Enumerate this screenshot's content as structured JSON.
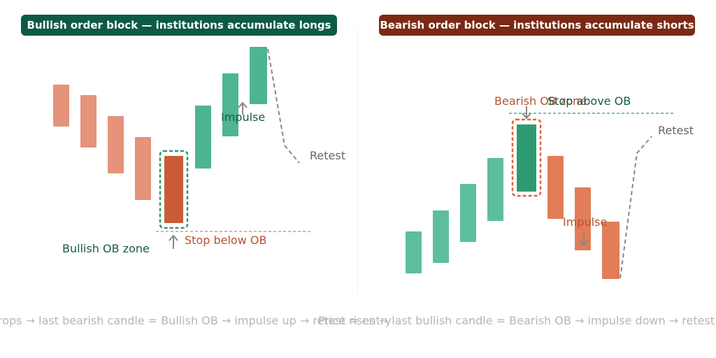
{
  "left": {
    "header": "Bullish order block — institutions accumulate longs",
    "header_color": "#0e5a46",
    "impulse_label": "Impulse",
    "retest_label": "Retest",
    "ob_zone_label": "Bullish OB zone",
    "stop_label": "Stop below OB",
    "caption": "Price drops → last bearish candle = Bullish OB → impulse up → retest = entry"
  },
  "right": {
    "header": "Bearish order block — institutions accumulate shorts",
    "header_color": "#7a2a14",
    "ob_zone_label": "Bearish OB zone",
    "stop_label": "Stop above OB",
    "impulse_label": "Impulse",
    "retest_label": "Retest",
    "caption": "Price rises → last bullish candle = Bearish OB → impulse down → retest = entry"
  },
  "colors": {
    "bearish_candle": "#e5937a",
    "ob_bearish": "#c95c36",
    "bullish_candle": "#4db592",
    "bullish_light": "#5dbe9e",
    "ob_bullish": "#2e9a72",
    "bearish_right": "#e27c59",
    "zone_green": "#2e9a72",
    "zone_red": "#e0643f",
    "green_text": "#1d5a48",
    "red_text": "#b4532e",
    "grey_text": "#666666"
  }
}
